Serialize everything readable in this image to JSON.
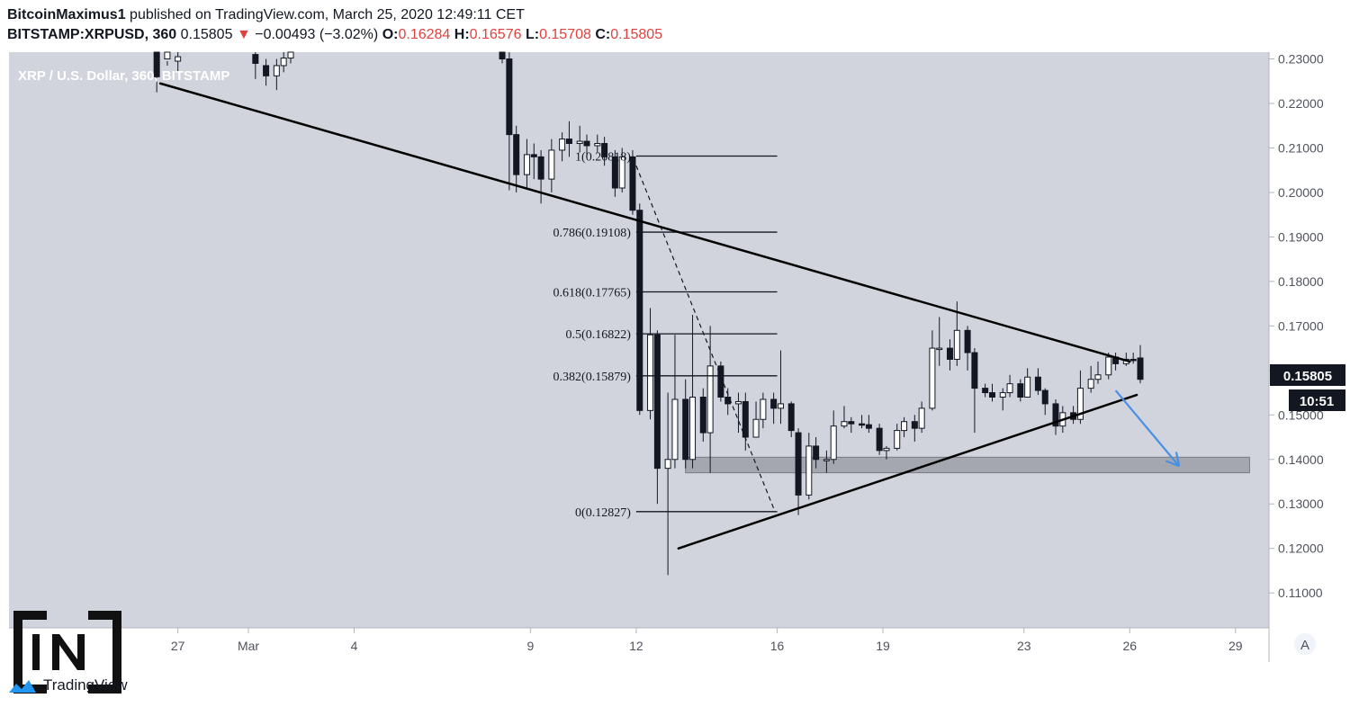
{
  "header": {
    "author": "BitcoinMaximus1",
    "published_text": "published on TradingView.com, March 25, 2020 12:49:11 CET",
    "symbol": "BITSTAMP:XRPUSD, 360",
    "last": "0.15805",
    "change_arrow": "▼",
    "change": "−0.00493 (−3.02%)",
    "open_label": "O:",
    "open": "0.16284",
    "high_label": "H:",
    "high": "0.16576",
    "low_label": "L:",
    "low": "0.15708",
    "close_label": "C:",
    "close": "0.15805"
  },
  "chart_title": "XRP / U.S. Dollar, 360, BITSTAMP",
  "price_badge": "0.15805",
  "time_badge": "10:51",
  "auto_scale_label": "A",
  "footer_brand": "TradingView",
  "watermark": "[IN]",
  "colors": {
    "background": "#d1d4dc",
    "axis_bg": "#ffffff",
    "candle_up": "#ffffff",
    "candle_down": "#131722",
    "trendline": "#000000",
    "arrow": "#4a90e2",
    "zone": "#9598a1",
    "change_negative": "#e0413f"
  },
  "chart_data": {
    "type": "candlestick",
    "y_axis": {
      "ticks": [
        "0.23000",
        "0.22000",
        "0.21000",
        "0.20000",
        "0.19000",
        "0.18000",
        "0.17000",
        "0.16000",
        "0.15000",
        "0.14000",
        "0.13000",
        "0.12000",
        "0.11000"
      ],
      "values": [
        0.23,
        0.22,
        0.21,
        0.2,
        0.19,
        0.18,
        0.17,
        0.16,
        0.15,
        0.14,
        0.13,
        0.12,
        0.11
      ],
      "ylim": [
        0.1025,
        0.2315
      ]
    },
    "x_axis": {
      "ticks": [
        "27",
        "Mar",
        "4",
        "9",
        "12",
        "16",
        "19",
        "23",
        "26",
        "29"
      ],
      "positions_days": [
        -2,
        0,
        3,
        8,
        11,
        15,
        18,
        22,
        25,
        28
      ],
      "xlim": [
        -5.6,
        29
      ]
    },
    "fib_levels": [
      {
        "label": "1(0.20818)",
        "value": 0.20818
      },
      {
        "label": "0.786(0.19108)",
        "value": 0.19108
      },
      {
        "label": "0.618(0.17765)",
        "value": 0.17765
      },
      {
        "label": "0.5(0.16822)",
        "value": 0.16822
      },
      {
        "label": "0.382(0.15879)",
        "value": 0.15879
      },
      {
        "label": "0(0.12827)",
        "value": 0.12827
      }
    ],
    "fib_range_days": [
      11,
      15
    ],
    "trendlines": [
      {
        "name": "upper",
        "from": [
          -2.5,
          0.2245
        ],
        "to": [
          25,
          0.162
        ]
      },
      {
        "name": "lower",
        "from": [
          12.2,
          0.12
        ],
        "to": [
          25.2,
          0.1545
        ]
      }
    ],
    "fib_diagonal": {
      "from": [
        11,
        0.206
      ],
      "to": [
        14.9,
        0.129
      ]
    },
    "support_zone": {
      "from_day": 12.4,
      "to_day": 28.4,
      "low": 0.137,
      "high": 0.1405
    },
    "projection_arrow": {
      "from": [
        24.6,
        0.1555
      ],
      "to": [
        26.4,
        0.1385
      ]
    },
    "candles": [
      [
        -2.6,
        0.233,
        0.226,
        0.23,
        0.2225
      ],
      [
        -2.3,
        0.23,
        0.232,
        0.2285,
        0.2295
      ],
      [
        -2.0,
        0.2295,
        0.2305,
        0.233,
        0.227
      ],
      [
        0.2,
        0.231,
        0.229,
        0.233,
        0.2255
      ],
      [
        0.5,
        0.2285,
        0.2262,
        0.23,
        0.224
      ],
      [
        0.8,
        0.2262,
        0.2285,
        0.23,
        0.223
      ],
      [
        1.0,
        0.2285,
        0.2302,
        0.232,
        0.227
      ],
      [
        1.2,
        0.2302,
        0.232,
        0.2335,
        0.229
      ],
      [
        7.2,
        0.2325,
        0.23,
        0.233,
        0.229
      ],
      [
        7.4,
        0.23,
        0.213,
        0.2315,
        0.2005
      ],
      [
        7.6,
        0.213,
        0.204,
        0.215,
        0.2
      ],
      [
        7.9,
        0.204,
        0.2085,
        0.212,
        0.201
      ],
      [
        8.1,
        0.2085,
        0.208,
        0.211,
        0.203
      ],
      [
        8.3,
        0.208,
        0.203,
        0.2095,
        0.1975
      ],
      [
        8.6,
        0.203,
        0.2095,
        0.212,
        0.2
      ],
      [
        8.9,
        0.2095,
        0.212,
        0.2135,
        0.207
      ],
      [
        9.1,
        0.212,
        0.211,
        0.216,
        0.208
      ],
      [
        9.4,
        0.211,
        0.2115,
        0.215,
        0.209
      ],
      [
        9.6,
        0.2115,
        0.2105,
        0.213,
        0.2085
      ],
      [
        9.9,
        0.2105,
        0.211,
        0.213,
        0.209
      ],
      [
        10.1,
        0.211,
        0.208,
        0.2125,
        0.206
      ],
      [
        10.4,
        0.208,
        0.201,
        0.2095,
        0.199
      ],
      [
        10.6,
        0.201,
        0.208,
        0.21,
        0.2
      ],
      [
        10.9,
        0.208,
        0.196,
        0.2095,
        0.195
      ],
      [
        11.1,
        0.196,
        0.151,
        0.1975,
        0.15
      ],
      [
        11.4,
        0.151,
        0.168,
        0.174,
        0.149
      ],
      [
        11.6,
        0.168,
        0.138,
        0.169,
        0.13
      ],
      [
        11.9,
        0.138,
        0.14,
        0.155,
        0.114
      ],
      [
        12.1,
        0.14,
        0.1535,
        0.168,
        0.138
      ],
      [
        12.4,
        0.1535,
        0.14,
        0.158,
        0.138
      ],
      [
        12.6,
        0.14,
        0.154,
        0.1725,
        0.138
      ],
      [
        12.9,
        0.154,
        0.146,
        0.156,
        0.144
      ],
      [
        13.1,
        0.146,
        0.161,
        0.17,
        0.137
      ],
      [
        13.4,
        0.161,
        0.154,
        0.162,
        0.153
      ],
      [
        13.6,
        0.154,
        0.1525,
        0.156,
        0.15
      ],
      [
        13.9,
        0.1525,
        0.153,
        0.155,
        0.146
      ],
      [
        14.1,
        0.153,
        0.145,
        0.155,
        0.142
      ],
      [
        14.4,
        0.145,
        0.149,
        0.153,
        0.146
      ],
      [
        14.6,
        0.149,
        0.1535,
        0.155,
        0.147
      ],
      [
        14.9,
        0.1535,
        0.1515,
        0.155,
        0.148
      ],
      [
        15.1,
        0.1515,
        0.1525,
        0.1645,
        0.148
      ],
      [
        15.4,
        0.1525,
        0.1465,
        0.153,
        0.145
      ],
      [
        15.6,
        0.146,
        0.132,
        0.147,
        0.1275
      ],
      [
        15.9,
        0.132,
        0.143,
        0.146,
        0.131
      ],
      [
        16.1,
        0.143,
        0.14,
        0.145,
        0.138
      ],
      [
        16.4,
        0.14,
        0.14,
        0.142,
        0.137
      ],
      [
        16.6,
        0.14,
        0.1475,
        0.151,
        0.139
      ],
      [
        16.9,
        0.1475,
        0.1485,
        0.152,
        0.147
      ],
      [
        17.1,
        0.1485,
        0.148,
        0.1495,
        0.146
      ],
      [
        17.4,
        0.148,
        0.1478,
        0.15,
        0.147
      ],
      [
        17.6,
        0.1478,
        0.147,
        0.15,
        0.146
      ],
      [
        17.9,
        0.147,
        0.142,
        0.148,
        0.141
      ],
      [
        18.1,
        0.142,
        0.1425,
        0.143,
        0.14
      ],
      [
        18.4,
        0.1425,
        0.1465,
        0.148,
        0.142
      ],
      [
        18.6,
        0.1465,
        0.1485,
        0.1495,
        0.145
      ],
      [
        18.9,
        0.1485,
        0.147,
        0.15,
        0.144
      ],
      [
        19.1,
        0.147,
        0.1515,
        0.153,
        0.146
      ],
      [
        19.4,
        0.1515,
        0.165,
        0.169,
        0.151
      ],
      [
        19.6,
        0.165,
        0.165,
        0.172,
        0.161
      ],
      [
        19.9,
        0.165,
        0.1625,
        0.167,
        0.16
      ],
      [
        20.1,
        0.1625,
        0.169,
        0.1755,
        0.161
      ],
      [
        20.4,
        0.169,
        0.164,
        0.17,
        0.16
      ],
      [
        20.6,
        0.164,
        0.156,
        0.165,
        0.146
      ],
      [
        20.9,
        0.156,
        0.155,
        0.157,
        0.154
      ],
      [
        21.1,
        0.155,
        0.154,
        0.157,
        0.153
      ],
      [
        21.4,
        0.154,
        0.155,
        0.156,
        0.151
      ],
      [
        21.6,
        0.155,
        0.157,
        0.159,
        0.154
      ],
      [
        21.9,
        0.157,
        0.154,
        0.158,
        0.153
      ],
      [
        22.1,
        0.154,
        0.1585,
        0.1605,
        0.156
      ],
      [
        22.4,
        0.1585,
        0.1555,
        0.1605,
        0.1545
      ],
      [
        22.6,
        0.1555,
        0.1525,
        0.156,
        0.15
      ],
      [
        22.9,
        0.1525,
        0.1475,
        0.1535,
        0.1455
      ],
      [
        23.1,
        0.1475,
        0.1505,
        0.152,
        0.146
      ],
      [
        23.4,
        0.1505,
        0.149,
        0.152,
        0.148
      ],
      [
        23.6,
        0.149,
        0.156,
        0.16,
        0.148
      ],
      [
        23.9,
        0.156,
        0.158,
        0.161,
        0.155
      ],
      [
        24.1,
        0.158,
        0.159,
        0.162,
        0.157
      ],
      [
        24.4,
        0.159,
        0.163,
        0.164,
        0.158
      ],
      [
        24.6,
        0.163,
        0.1615,
        0.164,
        0.16
      ],
      [
        24.9,
        0.1615,
        0.1625,
        0.164,
        0.161
      ],
      [
        25.1,
        0.1625,
        0.1622,
        0.164,
        0.1615
      ],
      [
        25.3,
        0.1628,
        0.158,
        0.1657,
        0.1571
      ]
    ]
  }
}
